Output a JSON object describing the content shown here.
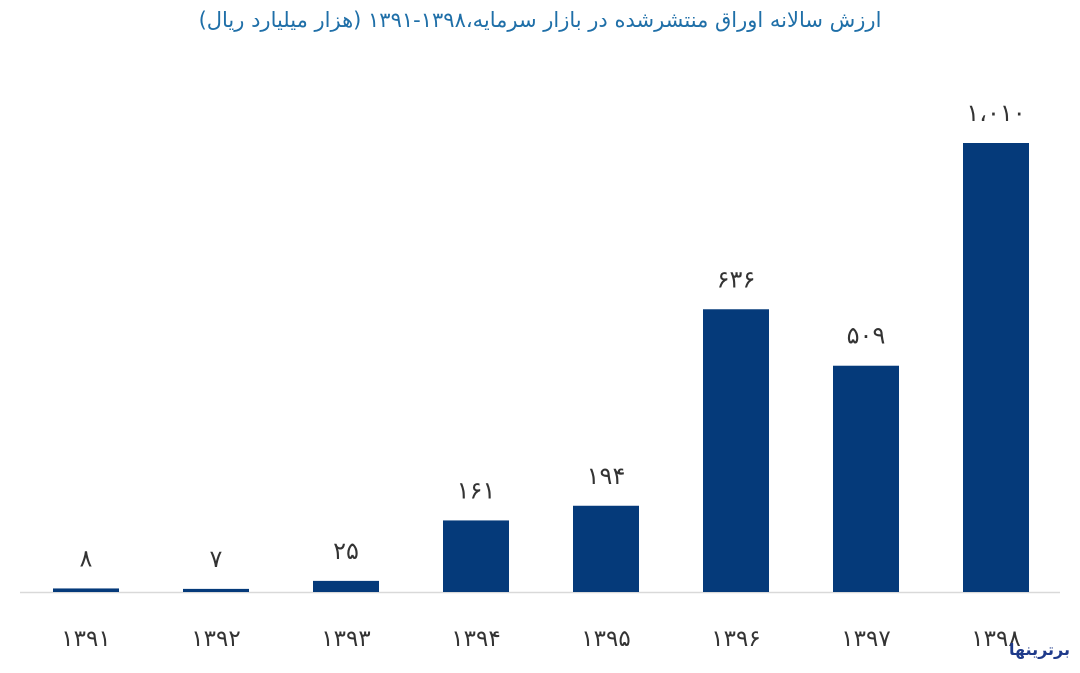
{
  "chart_data": {
    "type": "bar",
    "title": "ارزش سالانه اوراق منتشرشده در بازار سرمایه،۱۳۹۸-۱۳۹۱ (هزار میلیارد ریال)",
    "categories": [
      "۱۳۹۱",
      "۱۳۹۲",
      "۱۳۹۳",
      "۱۳۹۴",
      "۱۳۹۵",
      "۱۳۹۶",
      "۱۳۹۷",
      "۱۳۹۸"
    ],
    "values": [
      8,
      7,
      25,
      161,
      194,
      636,
      509,
      1010
    ],
    "value_labels": [
      "۸",
      "۷",
      "۲۵",
      "۱۶۱",
      "۱۹۴",
      "۶۳۶",
      "۵۰۹",
      "۱،۰۱۰"
    ],
    "xlabel": "",
    "ylabel": "",
    "ylim": [
      0,
      1010
    ],
    "grid": false,
    "colors": {
      "bar": "#053a7a",
      "title": "#1f6fa8",
      "label": "#333333",
      "baseline": "#d9d9d9"
    }
  },
  "watermark": "برترینها"
}
